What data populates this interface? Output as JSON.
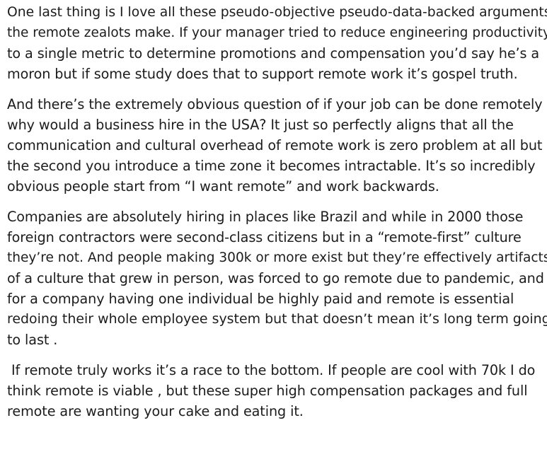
{
  "comment": {
    "paragraphs": [
      {
        "lines": [
          "One last thing is I love all these pseudo-objective pseudo-data-backed arguments",
          "the remote zealots make. If your manager tried to reduce engineering productivity",
          "to a single metric to determine promotions and compensation you’d say he’s a",
          "moron but if some study does that to support remote work it’s gospel truth."
        ]
      },
      {
        "lines": [
          "And there’s the extremely obvious question of if your job can be done remotely",
          "why would a business hire in the USA? It just so perfectly aligns that all the",
          "communication and cultural overhead of remote work is zero problem at all but",
          "the second you introduce a time zone it becomes intractable. It’s so incredibly",
          "obvious people start from “I want remote” and work backwards."
        ]
      },
      {
        "lines": [
          "Companies are absolutely hiring in places like Brazil and while in 2000 those",
          "foreign contractors were second-class citizens but in a “remote-first” culture",
          "they’re not. And people making 300k or more exist but they’re effectively artifacts",
          "of a culture that grew in person, was forced to go remote due to pandemic, and",
          "for a company having one individual be highly paid and remote is essential",
          "redoing their whole employee system but that doesn’t mean it’s long term going",
          "to last ."
        ]
      },
      {
        "lines": [
          " If remote truly works it’s a race to the bottom. If people are cool with 70k I do",
          "think remote is viable , but these super high compensation packages and full",
          "remote are wanting your cake and eating it."
        ]
      }
    ]
  }
}
